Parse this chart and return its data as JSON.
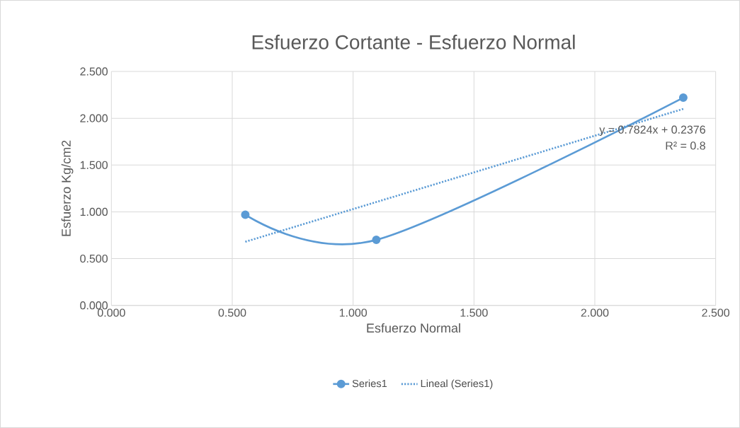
{
  "chart_data": {
    "type": "line",
    "title": "Esfuerzo Cortante - Esfuerzo Normal",
    "xlabel": "Esfuerzo Normal",
    "ylabel": "Esfuerzo  Kg/cm2",
    "x": [
      0.554,
      1.096,
      2.366
    ],
    "series": [
      {
        "name": "Series1",
        "color": "#5b9bd5",
        "values": [
          0.97,
          0.7,
          2.22
        ],
        "marker": "circle",
        "line_style": "solid"
      },
      {
        "name": "Lineal (Series1)",
        "color": "#5b9bd5",
        "x": [
          0.554,
          2.366
        ],
        "values": [
          0.68,
          2.1
        ],
        "marker": "none",
        "line_style": "dotted"
      }
    ],
    "annotations": [
      "y = 0.7824x + 0.2376",
      "R² = 0.8"
    ],
    "xlim": [
      0,
      2.5
    ],
    "ylim": [
      0,
      2.5
    ],
    "xticks": [
      {
        "value": 0,
        "label": "0.000"
      },
      {
        "value": 0.5,
        "label": "0.500"
      },
      {
        "value": 1,
        "label": "1.000"
      },
      {
        "value": 1.5,
        "label": "1.500"
      },
      {
        "value": 2,
        "label": "2.000"
      },
      {
        "value": 2.5,
        "label": "2.500"
      }
    ],
    "yticks": [
      {
        "value": 0,
        "label": "0.000"
      },
      {
        "value": 0.5,
        "label": "0.500"
      },
      {
        "value": 1,
        "label": "1.000"
      },
      {
        "value": 1.5,
        "label": "1.500"
      },
      {
        "value": 2,
        "label": "2.000"
      },
      {
        "value": 2.5,
        "label": "2.500"
      }
    ],
    "grid": true,
    "legend": "bottom"
  }
}
